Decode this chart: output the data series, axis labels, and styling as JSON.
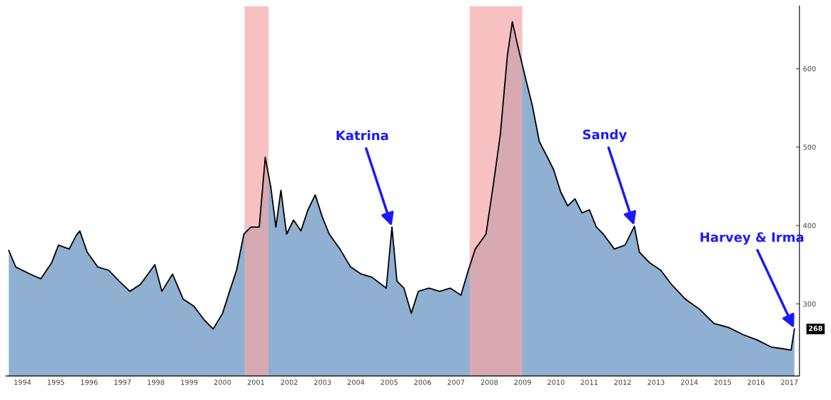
{
  "chart_data": {
    "type": "area",
    "x": [
      1994.09,
      1994.3,
      1994.73,
      1995.05,
      1995.37,
      1995.58,
      1995.9,
      1996.12,
      1996.22,
      1996.44,
      1996.76,
      1997.08,
      1997.4,
      1997.72,
      1998.04,
      1998.47,
      1998.68,
      1999.0,
      1999.32,
      1999.64,
      1999.96,
      2000.22,
      2000.5,
      2000.71,
      2000.92,
      2001.14,
      2001.35,
      2001.6,
      2001.78,
      2001.95,
      2002.1,
      2002.25,
      2002.42,
      2002.63,
      2002.85,
      2003.06,
      2003.28,
      2003.49,
      2003.7,
      2004.02,
      2004.34,
      2004.66,
      2004.98,
      2005.41,
      2005.58,
      2005.73,
      2005.94,
      2006.16,
      2006.37,
      2006.69,
      2007.01,
      2007.33,
      2007.65,
      2007.87,
      2008.08,
      2008.4,
      2008.62,
      2008.83,
      2009.04,
      2009.19,
      2009.37,
      2009.58,
      2009.79,
      2010.0,
      2010.22,
      2010.43,
      2010.64,
      2010.85,
      2011.07,
      2011.28,
      2011.5,
      2011.71,
      2011.92,
      2012.25,
      2012.57,
      2012.85,
      2013.0,
      2013.32,
      2013.64,
      2013.96,
      2014.38,
      2014.81,
      2015.24,
      2015.67,
      2016.1,
      2016.53,
      2016.95,
      2017.27,
      2017.55,
      2017.65
    ],
    "series": [
      {
        "color": "#8fb0d0",
        "values": [
          368,
          347,
          338,
          332,
          352,
          375,
          370,
          388,
          393,
          366,
          347,
          343,
          329,
          316,
          325,
          350,
          316,
          338,
          306,
          297,
          279,
          268,
          288,
          316,
          343,
          389,
          398,
          398,
          487,
          448,
          398,
          445,
          389,
          407,
          393,
          420,
          439,
          411,
          389,
          370,
          347,
          338,
          334,
          320,
          398,
          329,
          320,
          288,
          316,
          320,
          316,
          320,
          311,
          343,
          370,
          389,
          452,
          516,
          616,
          660,
          626,
          589,
          553,
          507,
          489,
          471,
          443,
          425,
          434,
          416,
          420,
          398,
          389,
          370,
          375,
          399,
          366,
          352,
          343,
          325,
          306,
          293,
          275,
          270,
          261,
          254,
          245,
          243,
          241,
          268
        ]
      }
    ],
    "xlim": [
      1994,
      2017.8
    ],
    "xticks": [
      {
        "value": 1994.5,
        "label": "1994"
      },
      {
        "value": 1995.5,
        "label": "1995"
      },
      {
        "value": 1996.5,
        "label": "1996"
      },
      {
        "value": 1997.5,
        "label": "1997"
      },
      {
        "value": 1998.5,
        "label": "1998"
      },
      {
        "value": 1999.5,
        "label": "1999"
      },
      {
        "value": 2000.5,
        "label": "2000"
      },
      {
        "value": 2001.5,
        "label": "2001"
      },
      {
        "value": 2002.5,
        "label": "2002"
      },
      {
        "value": 2003.5,
        "label": "2003"
      },
      {
        "value": 2004.5,
        "label": "2004"
      },
      {
        "value": 2005.5,
        "label": "2005"
      },
      {
        "value": 2006.5,
        "label": "2006"
      },
      {
        "value": 2007.5,
        "label": "2007"
      },
      {
        "value": 2008.5,
        "label": "2008"
      },
      {
        "value": 2009.5,
        "label": "2009"
      },
      {
        "value": 2010.5,
        "label": "2010"
      },
      {
        "value": 2011.5,
        "label": "2011"
      },
      {
        "value": 2012.5,
        "label": "2012"
      },
      {
        "value": 2013.5,
        "label": "2013"
      },
      {
        "value": 2014.5,
        "label": "2014"
      },
      {
        "value": 2015.5,
        "label": "2015"
      },
      {
        "value": 2016.5,
        "label": "2016"
      },
      {
        "value": 2017.5,
        "label": "2017"
      }
    ],
    "ylim": [
      208,
      680
    ],
    "yticks": [
      300,
      400,
      500,
      600
    ],
    "bands": [
      {
        "axis": "x",
        "from": 2001.16,
        "to": 2001.88,
        "color": "#f4a6a6"
      },
      {
        "axis": "x",
        "from": 2007.91,
        "to": 2009.49,
        "color": "#f4a6a6"
      }
    ],
    "annotations": [
      {
        "text": "Katrina",
        "x": 2005.58,
        "y": 398
      },
      {
        "text": "Sandy",
        "x": 2012.85,
        "y": 399
      },
      {
        "text": "Harvey & Irma",
        "x": 2017.65,
        "y": 268
      },
      {
        "text": "268",
        "x": 2017.65,
        "y": 268
      }
    ],
    "grid": false,
    "legend": false
  }
}
